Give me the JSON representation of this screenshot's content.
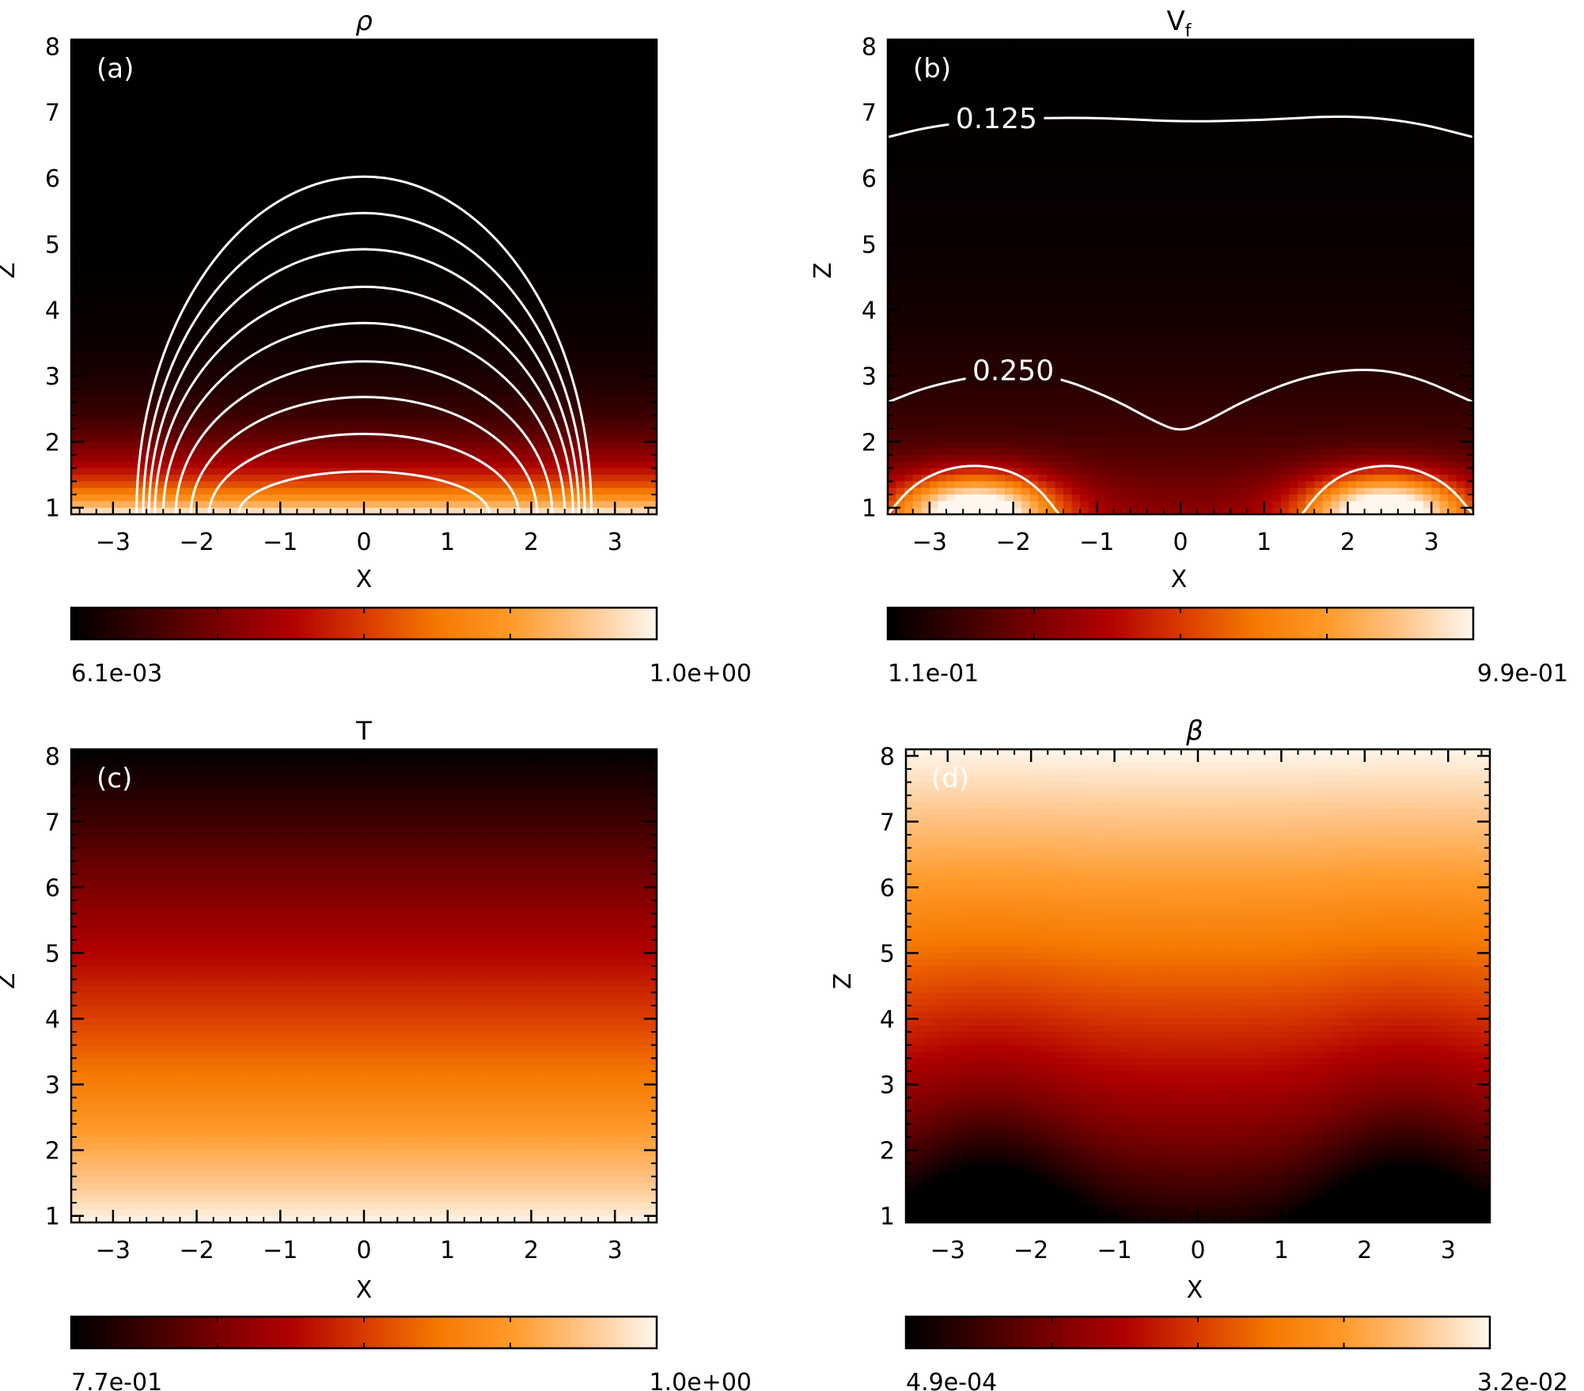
{
  "chart_data": [
    {
      "id": "a",
      "type": "heatmap",
      "title": "ρ",
      "panel_label": "(a)",
      "xlabel": "X",
      "ylabel": "Z",
      "xlim": [
        -3.5,
        3.5
      ],
      "ylim": [
        0.9,
        8.1
      ],
      "xticks": [
        -3,
        -2,
        -1,
        0,
        1,
        2,
        3
      ],
      "yticks": [
        1,
        2,
        3,
        4,
        5,
        6,
        7,
        8
      ],
      "field": "density",
      "colorbar": {
        "min_label": "6.1e-03",
        "max_label": "1.0e+00"
      },
      "field_lines": [
        {
          "half_width": 1.5,
          "height": 1.55
        },
        {
          "half_width": 1.85,
          "height": 2.12
        },
        {
          "half_width": 2.07,
          "height": 2.68
        },
        {
          "half_width": 2.25,
          "height": 3.22
        },
        {
          "half_width": 2.4,
          "height": 3.8
        },
        {
          "half_width": 2.5,
          "height": 4.35
        },
        {
          "half_width": 2.57,
          "height": 4.92
        },
        {
          "half_width": 2.64,
          "height": 5.47
        },
        {
          "half_width": 2.72,
          "height": 6.02
        }
      ],
      "contours": []
    },
    {
      "id": "b",
      "type": "heatmap",
      "title": "V",
      "title_subscript": "f",
      "panel_label": "(b)",
      "xlabel": "X",
      "ylabel": "Z",
      "xlim": [
        -3.5,
        3.5
      ],
      "ylim": [
        0.9,
        8.1
      ],
      "xticks": [
        -3,
        -2,
        -1,
        0,
        1,
        2,
        3
      ],
      "yticks": [
        1,
        2,
        3,
        4,
        5,
        6,
        7,
        8
      ],
      "field": "fast_speed",
      "colorbar": {
        "min_label": "1.1e-01",
        "max_label": "9.9e-01"
      },
      "field_lines": [],
      "contours": [
        {
          "label": "0.125",
          "label_at": [
            -2.2,
            6.9
          ],
          "points": [
            [
              -3.5,
              6.62
            ],
            [
              -3.0,
              6.78
            ],
            [
              -2.2,
              6.9
            ],
            [
              -1.0,
              6.92
            ],
            [
              0.0,
              6.85
            ],
            [
              1.0,
              6.88
            ],
            [
              2.0,
              6.95
            ],
            [
              2.8,
              6.85
            ],
            [
              3.5,
              6.62
            ]
          ]
        },
        {
          "label": "0.250",
          "label_at": [
            -2.0,
            3.08
          ],
          "points": [
            [
              -3.5,
              2.6
            ],
            [
              -3.0,
              2.85
            ],
            [
              -2.2,
              3.05
            ],
            [
              -1.5,
              3.0
            ],
            [
              -0.8,
              2.65
            ],
            [
              -0.3,
              2.3
            ],
            [
              0.0,
              2.15
            ],
            [
              0.3,
              2.3
            ],
            [
              0.8,
              2.65
            ],
            [
              1.5,
              3.0
            ],
            [
              2.2,
              3.12
            ],
            [
              2.8,
              3.0
            ],
            [
              3.5,
              2.6
            ]
          ]
        },
        {
          "label": "",
          "points": [
            [
              -3.5,
              0.9
            ],
            [
              -3.2,
              1.35
            ],
            [
              -2.8,
              1.6
            ],
            [
              -2.4,
              1.65
            ],
            [
              -2.0,
              1.55
            ],
            [
              -1.7,
              1.3
            ],
            [
              -1.45,
              0.9
            ]
          ]
        },
        {
          "label": "",
          "points": [
            [
              1.45,
              0.9
            ],
            [
              1.7,
              1.3
            ],
            [
              2.0,
              1.55
            ],
            [
              2.4,
              1.65
            ],
            [
              2.8,
              1.6
            ],
            [
              3.2,
              1.35
            ],
            [
              3.5,
              0.9
            ]
          ]
        }
      ]
    },
    {
      "id": "c",
      "type": "heatmap",
      "title": "T",
      "panel_label": "(c)",
      "xlabel": "X",
      "ylabel": "Z",
      "xlim": [
        -3.5,
        3.5
      ],
      "ylim": [
        0.9,
        8.1
      ],
      "xticks": [
        -3,
        -2,
        -1,
        0,
        1,
        2,
        3
      ],
      "yticks": [
        1,
        2,
        3,
        4,
        5,
        6,
        7,
        8
      ],
      "field": "temperature",
      "colorbar": {
        "min_label": "7.7e-01",
        "max_label": "1.0e+00"
      },
      "field_lines": [],
      "contours": []
    },
    {
      "id": "d",
      "type": "heatmap",
      "title": "β",
      "panel_label": "(d)",
      "xlabel": "X",
      "ylabel": "Z",
      "xlim": [
        -3.5,
        3.5
      ],
      "ylim": [
        0.9,
        8.1
      ],
      "xticks": [
        -3,
        -2,
        -1,
        0,
        1,
        2,
        3
      ],
      "yticks": [
        1,
        2,
        3,
        4,
        5,
        6,
        7,
        8
      ],
      "field": "plasma_beta",
      "colorbar": {
        "min_label": "4.9e-04",
        "max_label": "3.2e-02"
      },
      "field_lines": [],
      "contours": []
    }
  ],
  "colors": {
    "colormap": [
      "#000000",
      "#3a0000",
      "#7a0000",
      "#b00000",
      "#d83a00",
      "#f57800",
      "#ff9a2a",
      "#ffc487",
      "#fff7ee"
    ],
    "line": "#ffffff",
    "axis": "#000000"
  }
}
